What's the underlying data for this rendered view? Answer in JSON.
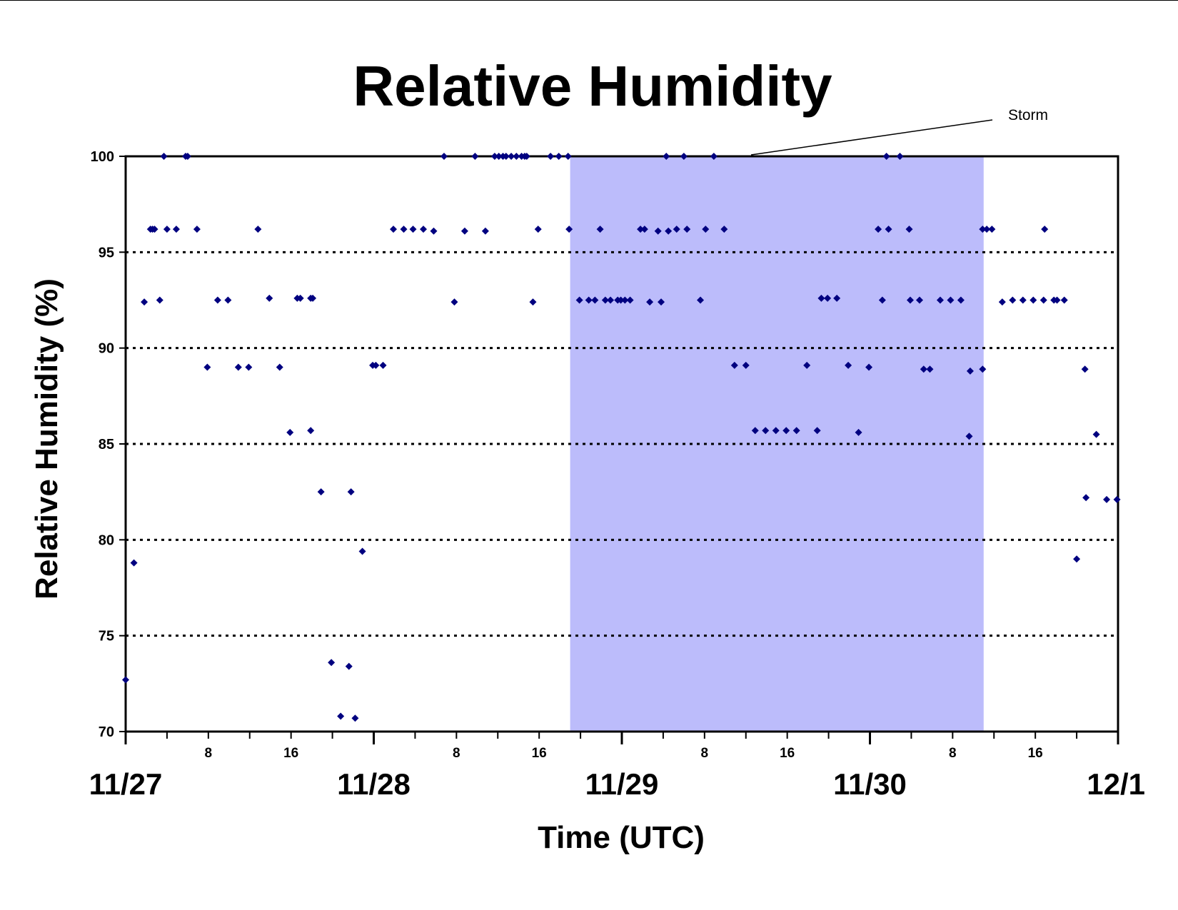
{
  "chart_data": {
    "type": "scatter",
    "title": "Relative Humidity",
    "xlabel": "Time (UTC)",
    "ylabel": "Relative Humidity (%)",
    "xlim": [
      0,
      96
    ],
    "ylim": [
      70,
      100
    ],
    "yticks": [
      70,
      75,
      80,
      85,
      90,
      95,
      100
    ],
    "gridlines_y": [
      75,
      80,
      85,
      90,
      95
    ],
    "grid_style": "dotted",
    "legend": "none",
    "day_ticks": [
      {
        "x": 0,
        "label": "11/27"
      },
      {
        "x": 24,
        "label": "11/28"
      },
      {
        "x": 48,
        "label": "11/29"
      },
      {
        "x": 72,
        "label": "11/30"
      },
      {
        "x": 96,
        "label": "12/1"
      }
    ],
    "hour_ticks": [
      {
        "x": 8,
        "label": "8"
      },
      {
        "x": 16,
        "label": "16"
      },
      {
        "x": 32,
        "label": "8"
      },
      {
        "x": 40,
        "label": "16"
      },
      {
        "x": 56,
        "label": "8"
      },
      {
        "x": 64,
        "label": "16"
      },
      {
        "x": 80,
        "label": "8"
      },
      {
        "x": 88,
        "label": "16"
      }
    ],
    "minor_tick_interval": 4,
    "shaded_region": {
      "x0": 43,
      "x1": 83,
      "color": "#bcbcfb"
    },
    "annotation": {
      "text": "Storm",
      "x": 60.5,
      "y": 100
    },
    "marker_color": "#000080",
    "points": [
      [
        0,
        72.7
      ],
      [
        0.8,
        78.8
      ],
      [
        1.8,
        92.4
      ],
      [
        2.4,
        96.2
      ],
      [
        2.6,
        96.2
      ],
      [
        2.8,
        96.2
      ],
      [
        3.3,
        92.5
      ],
      [
        3.7,
        100
      ],
      [
        4,
        96.2
      ],
      [
        4.9,
        96.2
      ],
      [
        5.8,
        100
      ],
      [
        6,
        100
      ],
      [
        6.9,
        96.2
      ],
      [
        7.9,
        89
      ],
      [
        8.9,
        92.5
      ],
      [
        9.9,
        92.5
      ],
      [
        10.9,
        89
      ],
      [
        11.9,
        89
      ],
      [
        12.8,
        96.2
      ],
      [
        13.9,
        92.6
      ],
      [
        14.9,
        89
      ],
      [
        15.9,
        85.6
      ],
      [
        16.6,
        92.6
      ],
      [
        16.9,
        92.6
      ],
      [
        17.9,
        85.7
      ],
      [
        17.9,
        92.6
      ],
      [
        18.1,
        92.6
      ],
      [
        18.9,
        82.5
      ],
      [
        19.9,
        73.6
      ],
      [
        20.8,
        70.8
      ],
      [
        21.6,
        73.4
      ],
      [
        21.8,
        82.5
      ],
      [
        22.2,
        70.7
      ],
      [
        22.9,
        79.4
      ],
      [
        23.9,
        89.1
      ],
      [
        24.2,
        89.1
      ],
      [
        24.9,
        89.1
      ],
      [
        25.9,
        96.2
      ],
      [
        26.9,
        96.2
      ],
      [
        27.8,
        96.2
      ],
      [
        28.8,
        96.2
      ],
      [
        29.8,
        96.1
      ],
      [
        30.8,
        100
      ],
      [
        31.8,
        92.4
      ],
      [
        32.8,
        96.1
      ],
      [
        33.8,
        100
      ],
      [
        34.8,
        96.1
      ],
      [
        35.7,
        100
      ],
      [
        36.1,
        100
      ],
      [
        36.5,
        100
      ],
      [
        36.8,
        100
      ],
      [
        37.3,
        100
      ],
      [
        37.8,
        100
      ],
      [
        38.3,
        100
      ],
      [
        38.6,
        100
      ],
      [
        38.8,
        100
      ],
      [
        39.4,
        92.4
      ],
      [
        39.9,
        96.2
      ],
      [
        41.1,
        100
      ],
      [
        41.9,
        100
      ],
      [
        42.8,
        100
      ],
      [
        42.9,
        96.2
      ],
      [
        43.9,
        92.5
      ],
      [
        44.8,
        92.5
      ],
      [
        45.4,
        92.5
      ],
      [
        45.9,
        96.2
      ],
      [
        46.4,
        92.5
      ],
      [
        46.9,
        92.5
      ],
      [
        47.6,
        92.5
      ],
      [
        47.9,
        92.5
      ],
      [
        48.3,
        92.5
      ],
      [
        48.8,
        92.5
      ],
      [
        49.8,
        96.2
      ],
      [
        50.2,
        96.2
      ],
      [
        50.7,
        92.4
      ],
      [
        51.5,
        96.1
      ],
      [
        51.8,
        92.4
      ],
      [
        52.3,
        100
      ],
      [
        52.5,
        96.1
      ],
      [
        53.3,
        96.2
      ],
      [
        54,
        100
      ],
      [
        54.3,
        96.2
      ],
      [
        55.6,
        92.5
      ],
      [
        56.1,
        96.2
      ],
      [
        56.9,
        100
      ],
      [
        57.9,
        96.2
      ],
      [
        58.9,
        89.1
      ],
      [
        60,
        89.1
      ],
      [
        60.9,
        85.7
      ],
      [
        61.9,
        85.7
      ],
      [
        62.9,
        85.7
      ],
      [
        63.9,
        85.7
      ],
      [
        64.9,
        85.7
      ],
      [
        65.9,
        89.1
      ],
      [
        66.9,
        85.7
      ],
      [
        67.3,
        92.6
      ],
      [
        67.9,
        92.6
      ],
      [
        68.8,
        92.6
      ],
      [
        69.9,
        89.1
      ],
      [
        70.9,
        85.6
      ],
      [
        71.9,
        89
      ],
      [
        72.8,
        96.2
      ],
      [
        73.2,
        92.5
      ],
      [
        73.6,
        100
      ],
      [
        73.8,
        96.2
      ],
      [
        74.9,
        100
      ],
      [
        75.8,
        96.2
      ],
      [
        75.9,
        92.5
      ],
      [
        76.8,
        92.5
      ],
      [
        77.2,
        88.9
      ],
      [
        77.8,
        88.9
      ],
      [
        78.8,
        92.5
      ],
      [
        79.8,
        92.5
      ],
      [
        80.8,
        92.5
      ],
      [
        81.6,
        85.4
      ],
      [
        81.7,
        88.8
      ],
      [
        82.9,
        88.9
      ],
      [
        82.9,
        96.2
      ],
      [
        83.3,
        96.2
      ],
      [
        83.8,
        96.2
      ],
      [
        84.8,
        92.4
      ],
      [
        85.8,
        92.5
      ],
      [
        86.8,
        92.5
      ],
      [
        87.8,
        92.5
      ],
      [
        88.8,
        92.5
      ],
      [
        88.9,
        96.2
      ],
      [
        89.8,
        92.5
      ],
      [
        90.1,
        92.5
      ],
      [
        90.8,
        92.5
      ],
      [
        92,
        79
      ],
      [
        92.8,
        88.9
      ],
      [
        92.9,
        82.2
      ],
      [
        93.9,
        85.5
      ],
      [
        94.9,
        82.1
      ],
      [
        95.9,
        82.1
      ]
    ]
  }
}
